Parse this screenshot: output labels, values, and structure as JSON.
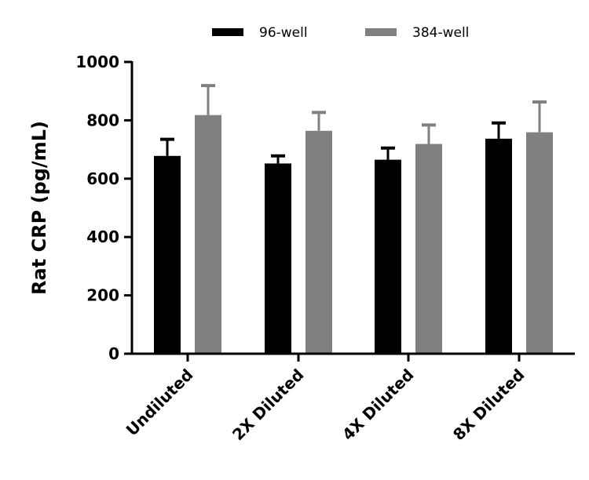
{
  "chart_data": {
    "type": "bar",
    "title": "",
    "xlabel": "",
    "ylabel": "Rat CRP (pg/mL)",
    "ylim": [
      0,
      1000
    ],
    "yticks": [
      "0",
      "200",
      "400",
      "600",
      "800",
      "1000"
    ],
    "categories": [
      "Undiluted",
      "2X Diluted",
      "4X Diluted",
      "8X Diluted"
    ],
    "legend_position": "top",
    "grid": false,
    "series": [
      {
        "name": "96-well",
        "color": "#000000",
        "values": [
          678,
          652,
          665,
          737
        ],
        "error_upper": [
          735,
          678,
          705,
          791
        ]
      },
      {
        "name": "384-well",
        "color": "#808080",
        "values": [
          818,
          764,
          719,
          759
        ],
        "error_upper": [
          919,
          827,
          784,
          863
        ]
      }
    ]
  }
}
